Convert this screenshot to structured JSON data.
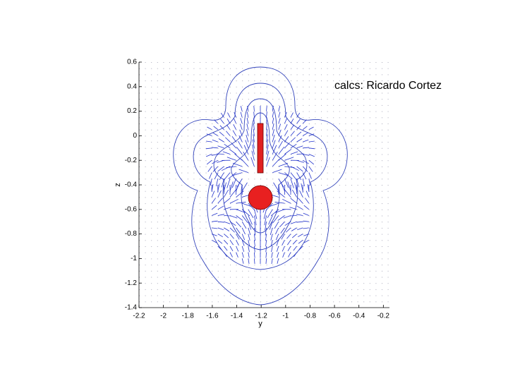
{
  "chart_data": {
    "type": "quiver",
    "xlabel": "y",
    "ylabel": "z",
    "annotation": "calcs:  Ricardo Cortez",
    "xlim": [
      -2.2,
      -0.15
    ],
    "ylim": [
      -1.4,
      0.6
    ],
    "xticks": [
      -2.2,
      -2,
      -1.8,
      -1.6,
      -1.4,
      -1.2,
      -1,
      -0.8,
      -0.6,
      -0.4,
      -0.2
    ],
    "yticks": [
      -1.4,
      -1.2,
      -1,
      -0.8,
      -0.6,
      -0.4,
      -0.2,
      0,
      0.2,
      0.4,
      0.6
    ],
    "color": "#2233cc"
  }
}
